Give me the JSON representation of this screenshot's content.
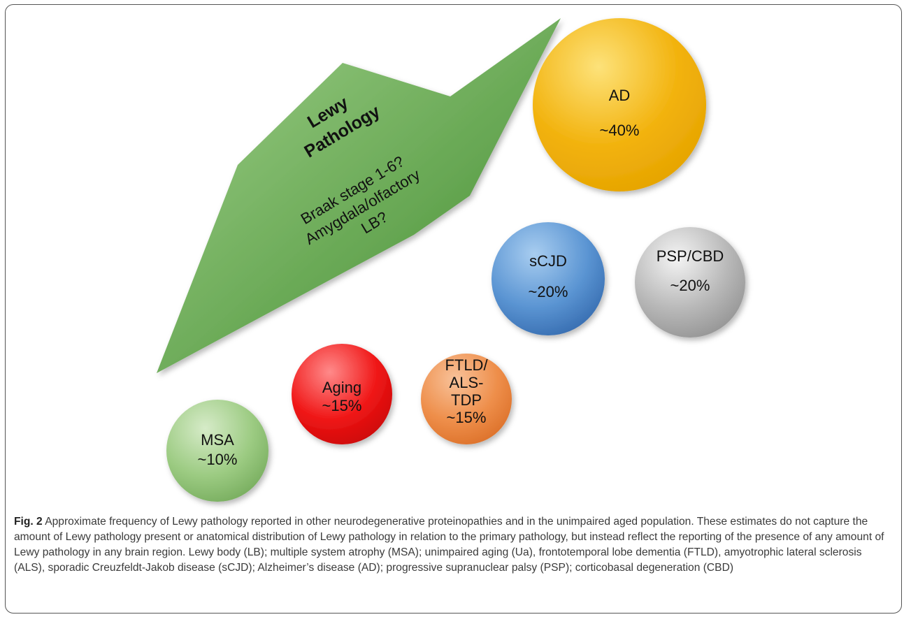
{
  "arrow": {
    "title_lines": [
      "Lewy",
      "Pathology"
    ],
    "text_lines": [
      "Braak stage 1-6?",
      "Amygdala/olfactory",
      "LB?"
    ],
    "color_light": "#9fd08a",
    "color_dark": "#3f8a2c"
  },
  "circles": [
    {
      "id": "ad",
      "lines": [
        "AD",
        "~40%"
      ],
      "color_light": "#fde27a",
      "color": "#f2b20c",
      "color_dark": "#e2a000"
    },
    {
      "id": "scjd",
      "lines": [
        "sCJD",
        "~20%"
      ],
      "color_light": "#a8cdf0",
      "color": "#5b95d3",
      "color_dark": "#2e63a8"
    },
    {
      "id": "pspcbd",
      "lines": [
        "PSP/CBD",
        "~20%"
      ],
      "color_light": "#f4f4f4",
      "color": "#b8b8b8",
      "color_dark": "#8c8c8c"
    },
    {
      "id": "ftld",
      "lines": [
        "FTLD/",
        "ALS-",
        "TDP",
        "~15%"
      ],
      "color_light": "#f8c29a",
      "color": "#ee8e4a",
      "color_dark": "#d86a22"
    },
    {
      "id": "aging",
      "lines": [
        "Aging",
        "~15%"
      ],
      "color_light": "#ff8a8a",
      "color": "#f01818",
      "color_dark": "#c40000"
    },
    {
      "id": "msa",
      "lines": [
        "MSA",
        "~10%"
      ],
      "color_light": "#d6ebc8",
      "color": "#9ccb82",
      "color_dark": "#6fa656"
    }
  ],
  "caption": {
    "label": "Fig. 2",
    "text": "Approximate frequency of Lewy pathology reported in other neurodegenerative proteinopathies and in the unimpaired aged population. These estimates do not capture the amount of Lewy pathology present or anatomical distribution of Lewy pathology in relation to the primary pathology, but instead reflect the reporting of the presence of any amount of Lewy pathology in any brain region. Lewy body (LB); multiple system atrophy (MSA); unimpaired aging (Ua), frontotemporal lobe dementia (FTLD), amyotrophic lateral sclerosis (ALS), sporadic Creuzfeldt-Jakob disease (sCJD); Alzheimer’s disease (AD); progressive supranuclear palsy (PSP); corticobasal degeneration (CBD)"
  }
}
